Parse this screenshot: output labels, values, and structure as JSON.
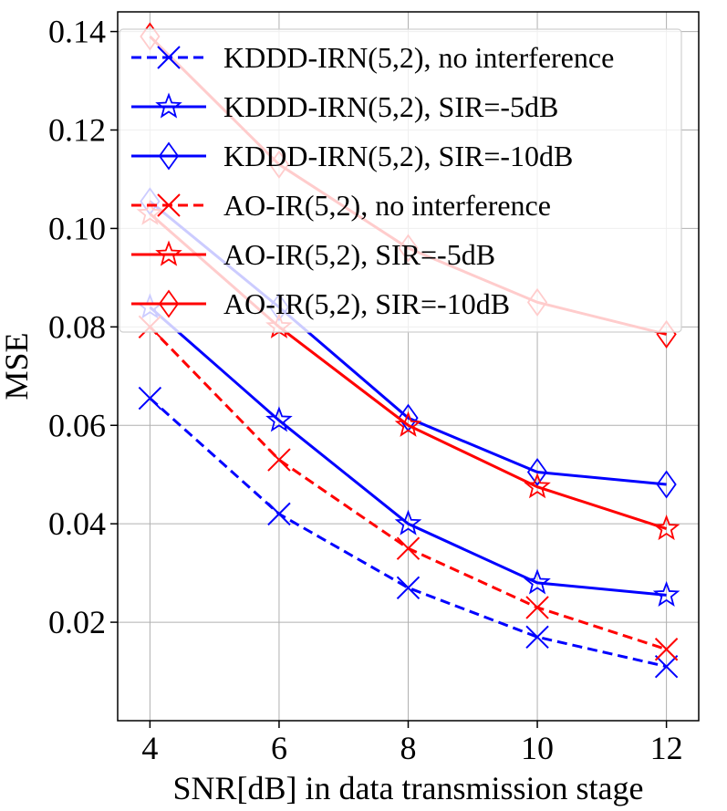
{
  "chart_data": {
    "type": "line",
    "title": "",
    "xlabel": "SNR[dB] in data transmission stage",
    "ylabel": "MSE",
    "x": [
      4,
      6,
      8,
      10,
      12
    ],
    "xlim": [
      3.5,
      12.5
    ],
    "ylim": [
      0.0,
      0.144
    ],
    "xticks": [
      4,
      6,
      8,
      10,
      12
    ],
    "yticks": [
      0.02,
      0.04,
      0.06,
      0.08,
      0.1,
      0.12,
      0.14
    ],
    "ytick_labels": [
      "0.02",
      "0.04",
      "0.06",
      "0.08",
      "0.10",
      "0.12",
      "0.14"
    ],
    "grid": true,
    "legend_position": "top-right",
    "series": [
      {
        "name": "KDDD-IRN(5,2), no interference",
        "color": "#0000ff",
        "dash": "dashed",
        "marker": "x",
        "values": [
          0.0655,
          0.042,
          0.027,
          0.017,
          0.011
        ]
      },
      {
        "name": "KDDD-IRN(5,2), SIR=-5dB",
        "color": "#0000ff",
        "dash": "solid",
        "marker": "star",
        "values": [
          0.084,
          0.061,
          0.04,
          0.028,
          0.0255
        ]
      },
      {
        "name": "KDDD-IRN(5,2), SIR=-10dB",
        "color": "#0000ff",
        "dash": "solid",
        "marker": "diamond",
        "values": [
          0.1055,
          0.084,
          0.0615,
          0.0505,
          0.048
        ]
      },
      {
        "name": "AO-IR(5,2), no interference",
        "color": "#ff0000",
        "dash": "dashed",
        "marker": "x",
        "values": [
          0.08,
          0.053,
          0.035,
          0.023,
          0.0145
        ]
      },
      {
        "name": "AO-IR(5,2), SIR=-5dB",
        "color": "#ff0000",
        "dash": "solid",
        "marker": "star",
        "values": [
          0.103,
          0.08,
          0.06,
          0.0475,
          0.039
        ]
      },
      {
        "name": "AO-IR(5,2), SIR=-10dB",
        "color": "#ff0000",
        "dash": "solid",
        "marker": "diamond",
        "values": [
          0.139,
          0.113,
          0.096,
          0.085,
          0.0785
        ]
      }
    ]
  }
}
